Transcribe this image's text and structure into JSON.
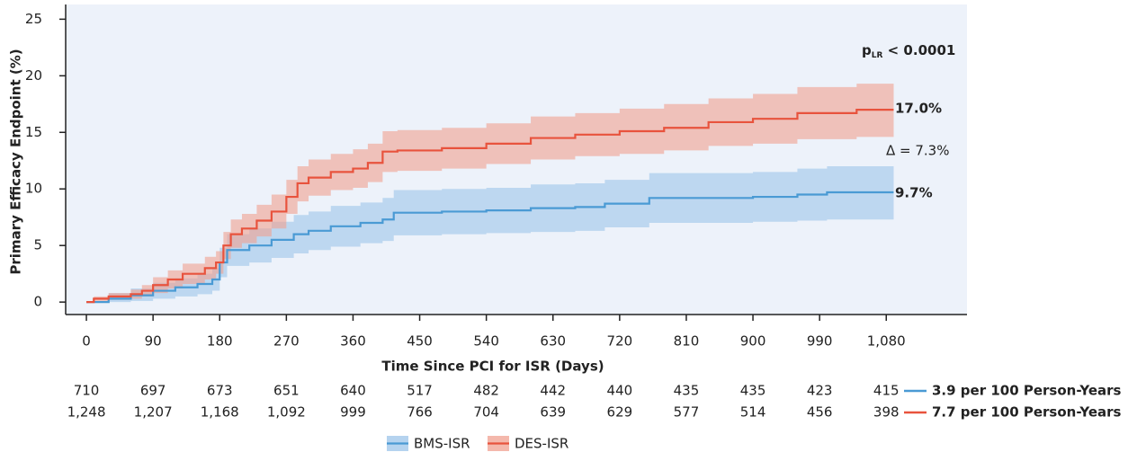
{
  "chart_data": {
    "type": "step",
    "xlabel": "Time Since PCI for ISR (Days)",
    "ylabel": "Primary Efficacy Endpoint (%)",
    "xlim": [
      -28,
      1189
    ],
    "ylim": [
      -1.1,
      26.3
    ],
    "xticks": [
      0,
      90,
      180,
      270,
      360,
      450,
      540,
      630,
      720,
      810,
      900,
      990,
      {
        "value": 1080,
        "label": "1,080"
      }
    ],
    "yticks": [
      0,
      5,
      10,
      15,
      20,
      25
    ],
    "background": "#edf2fa",
    "series": [
      {
        "name": "BMS-ISR",
        "color": "#4a9ad4",
        "band_color": "#9cc4ea",
        "x": [
          0,
          30,
          60,
          90,
          120,
          150,
          170,
          180,
          190,
          220,
          250,
          280,
          300,
          330,
          370,
          400,
          415,
          480,
          540,
          600,
          660,
          700,
          760,
          900,
          960,
          1000,
          1090
        ],
        "values": [
          0,
          0.3,
          0.6,
          1.0,
          1.3,
          1.6,
          2.0,
          3.5,
          4.6,
          5.0,
          5.5,
          6.0,
          6.3,
          6.7,
          7.0,
          7.3,
          7.9,
          8.0,
          8.1,
          8.3,
          8.4,
          8.7,
          9.2,
          9.3,
          9.5,
          9.7,
          9.7
        ],
        "lower": [
          0,
          0,
          0.1,
          0.3,
          0.5,
          0.7,
          1.0,
          2.2,
          3.2,
          3.5,
          3.9,
          4.3,
          4.6,
          4.9,
          5.2,
          5.4,
          5.9,
          6.0,
          6.1,
          6.2,
          6.3,
          6.6,
          7.0,
          7.1,
          7.2,
          7.3,
          7.3
        ],
        "upper": [
          0,
          0.8,
          1.2,
          1.7,
          2.1,
          2.5,
          3.0,
          4.8,
          6.0,
          6.5,
          7.1,
          7.7,
          8.0,
          8.5,
          8.8,
          9.2,
          9.9,
          10.0,
          10.1,
          10.4,
          10.5,
          10.8,
          11.4,
          11.5,
          11.8,
          12.0,
          12.0
        ]
      },
      {
        "name": "DES-ISR",
        "color": "#e8533d",
        "band_color": "#f0a090",
        "x": [
          0,
          10,
          30,
          60,
          75,
          90,
          110,
          130,
          160,
          175,
          185,
          195,
          210,
          230,
          250,
          270,
          285,
          300,
          330,
          360,
          380,
          400,
          420,
          480,
          540,
          600,
          660,
          720,
          780,
          840,
          900,
          960,
          1040,
          1090
        ],
        "values": [
          0,
          0.3,
          0.5,
          0.7,
          1.0,
          1.5,
          2.0,
          2.5,
          3.0,
          3.5,
          5.0,
          6.0,
          6.5,
          7.2,
          8.0,
          9.3,
          10.5,
          11.0,
          11.5,
          11.8,
          12.3,
          13.3,
          13.4,
          13.6,
          14.0,
          14.5,
          14.8,
          15.1,
          15.4,
          15.9,
          16.2,
          16.7,
          17.0,
          17.0
        ],
        "lower": [
          0,
          0.1,
          0.2,
          0.3,
          0.5,
          0.8,
          1.2,
          1.6,
          2.0,
          2.5,
          3.8,
          4.8,
          5.2,
          5.8,
          6.5,
          7.8,
          8.9,
          9.4,
          9.9,
          10.1,
          10.6,
          11.5,
          11.6,
          11.8,
          12.2,
          12.6,
          12.9,
          13.1,
          13.4,
          13.8,
          14.0,
          14.4,
          14.6,
          14.6
        ],
        "upper": [
          0,
          0.5,
          0.8,
          1.1,
          1.5,
          2.2,
          2.8,
          3.4,
          4.0,
          4.5,
          6.2,
          7.3,
          7.8,
          8.6,
          9.5,
          10.8,
          12.0,
          12.6,
          13.1,
          13.5,
          14.0,
          15.1,
          15.2,
          15.4,
          15.8,
          16.4,
          16.7,
          17.1,
          17.5,
          18.0,
          18.4,
          19.0,
          19.3,
          19.3
        ]
      }
    ],
    "annotations": {
      "p": "p",
      "p_sub": "LR",
      "p_rest": " < 0.0001",
      "des_end": "17.0%",
      "delta": "Δ = 7.3%",
      "bms_end": "9.7%"
    },
    "risk_table": {
      "rows": [
        {
          "values": [
            "710",
            "697",
            "673",
            "651",
            "640",
            "517",
            "482",
            "442",
            "440",
            "435",
            "435",
            "423",
            "415"
          ],
          "label": "3.9 per 100 Person-Years"
        },
        {
          "values": [
            "1,248",
            "1,207",
            "1,168",
            "1,092",
            "999",
            "766",
            "704",
            "639",
            "629",
            "577",
            "514",
            "456",
            "398"
          ],
          "label": "7.7 per 100 Person-Years"
        }
      ]
    }
  }
}
